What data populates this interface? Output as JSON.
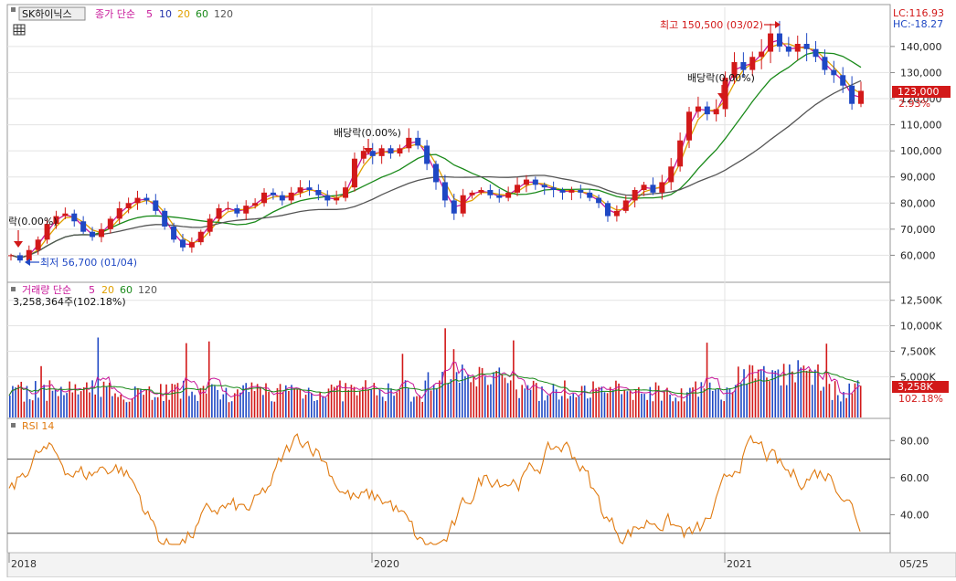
{
  "toolbar": {
    "stock_name": "SK하이닉스",
    "price_label": "종가 단순",
    "ma_periods": [
      "5",
      "10",
      "20",
      "60",
      "120"
    ]
  },
  "status": {
    "lc": "LC:116.93",
    "hc": "HC:-18.27"
  },
  "current": {
    "price_label": "123,000",
    "change_pct": "2.93%",
    "volume_label": "3,258K",
    "volume_pct": "102.18%"
  },
  "volume_header": {
    "label": "거래량 단순",
    "ma_periods": [
      "5",
      "20",
      "60",
      "120"
    ],
    "current_text": "3,258,364주(102.18%)"
  },
  "rsi_header": {
    "label": "RSI 14"
  },
  "annotations": {
    "high_text": "최고 150,500 (03/02)",
    "low_text": "최저 56,700 (01/04)",
    "dividend_left": "락(0.00%)",
    "dividend_mid": "배당락(0.00%)",
    "dividend_right": "배당락(0.00%)"
  },
  "x_labels": [
    "2018",
    "2020",
    "2021",
    "05/25"
  ],
  "colors": {
    "up": "#d21919",
    "down": "#1f48c4",
    "ma5": "#c8199a",
    "ma10": "#2233aa",
    "ma20": "#e0a000",
    "ma60": "#1a8a1a",
    "ma120": "#555555",
    "rsi": "#e07a10",
    "grid": "#e3e3e3"
  },
  "chart_data": [
    {
      "type": "candlestick",
      "title": "SK하이닉스 종가",
      "y_ticks": [
        "60,000",
        "70,000",
        "80,000",
        "90,000",
        "100,000",
        "110,000",
        "120,000",
        "130,000",
        "140,000"
      ],
      "ylim": [
        50000,
        155000
      ],
      "weekly_close_approx": [
        60000,
        58000,
        62000,
        66000,
        72000,
        75000,
        76000,
        73000,
        69000,
        67000,
        70000,
        74000,
        78000,
        80000,
        82000,
        81000,
        77000,
        71000,
        66000,
        63000,
        65000,
        69000,
        74000,
        78000,
        78000,
        76000,
        79000,
        80000,
        84000,
        83000,
        81000,
        84000,
        86000,
        85000,
        83000,
        81000,
        82000,
        86000,
        97000,
        100000,
        98000,
        101000,
        99000,
        101000,
        105000,
        102000,
        95000,
        88000,
        81000,
        76000,
        83000,
        84000,
        85000,
        83000,
        82000,
        84000,
        87000,
        89000,
        87000,
        86000,
        85000,
        84000,
        85000,
        84000,
        82000,
        80000,
        75000,
        77000,
        81000,
        85000,
        87000,
        84000,
        88000,
        94000,
        104000,
        115000,
        117000,
        114000,
        116000,
        128000,
        134000,
        131000,
        136000,
        138000,
        145000,
        140000,
        138000,
        141000,
        139000,
        136000,
        131000,
        129000,
        125000,
        118000,
        123000
      ],
      "highlighted": {
        "high": 150500,
        "high_date": "03/02",
        "low": 56700,
        "low_date": "01/04",
        "last": 123000
      }
    },
    {
      "type": "bar",
      "title": "거래량",
      "y_ticks": [
        "5,000K",
        "7,500K",
        "10,000K",
        "12,500K"
      ],
      "ylim": [
        1000000,
        14000000
      ],
      "last_value": 3258364
    },
    {
      "type": "line",
      "title": "RSI 14",
      "y_ticks": [
        "40.00",
        "60.00",
        "80.00"
      ],
      "ylim": [
        20,
        90
      ],
      "reference_lines": [
        30,
        70
      ]
    }
  ]
}
